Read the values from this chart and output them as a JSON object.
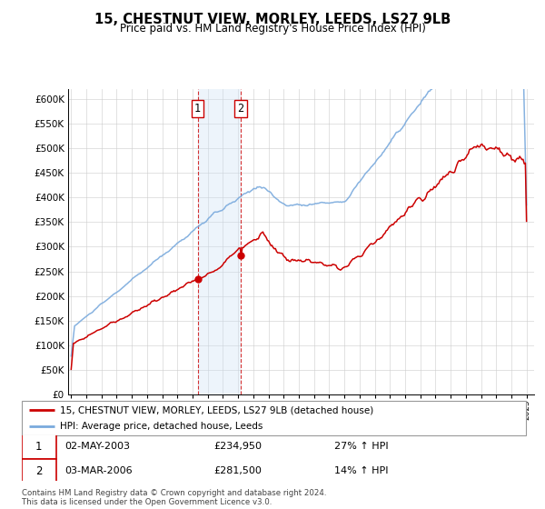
{
  "title": "15, CHESTNUT VIEW, MORLEY, LEEDS, LS27 9LB",
  "subtitle": "Price paid vs. HM Land Registry's House Price Index (HPI)",
  "ylim": [
    0,
    620000
  ],
  "yticks": [
    0,
    50000,
    100000,
    150000,
    200000,
    250000,
    300000,
    350000,
    400000,
    450000,
    500000,
    550000,
    600000
  ],
  "sale1_date": 2003.33,
  "sale1_price": 234950,
  "sale2_date": 2006.17,
  "sale2_price": 281500,
  "line_color_price": "#cc0000",
  "line_color_hpi": "#7aaadd",
  "shade_color": "#cce0f5",
  "legend_label_price": "15, CHESTNUT VIEW, MORLEY, LEEDS, LS27 9LB (detached house)",
  "legend_label_hpi": "HPI: Average price, detached house, Leeds",
  "annotation1_date": "02-MAY-2003",
  "annotation1_price": "£234,950",
  "annotation1_hpi": "27% ↑ HPI",
  "annotation2_date": "03-MAR-2006",
  "annotation2_price": "£281,500",
  "annotation2_hpi": "14% ↑ HPI",
  "footnote": "Contains HM Land Registry data © Crown copyright and database right 2024.\nThis data is licensed under the Open Government Licence v3.0.",
  "grid_color": "#cccccc"
}
